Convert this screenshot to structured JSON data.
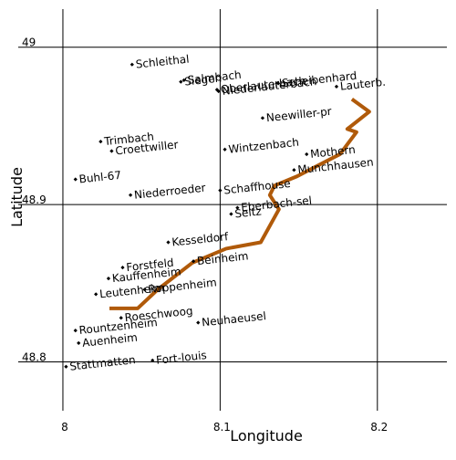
{
  "chart_data": {
    "type": "scatter",
    "xlabel": "Longitude",
    "ylabel": "Latitude",
    "xlim": [
      7.96,
      8.25
    ],
    "ylim": [
      48.74,
      49.03
    ],
    "xticks": [
      8,
      8.1,
      8.2
    ],
    "yticks": [
      48.8,
      48.9,
      49
    ],
    "grid": true,
    "color": "#000000",
    "points": {
      "labels": [
        "Schleithal",
        "Siegen",
        "Salmbach",
        "Oberlauterbach",
        "Niederlauterbach",
        "Scheibenhard",
        "Lauterb.",
        "Neewiller-pr",
        "Trimbach",
        "Croettwiller",
        "Wintzenbach",
        "Mothern",
        "Munchhausen",
        "Buhl-67",
        "Niederroeder",
        "Schaffhouse",
        "Eberbach-sel",
        "Seltz",
        "Kesseldorf",
        "Forstfeld",
        "Beinheim",
        "Kauffenheim",
        "Roppenheim",
        "Leutenheim",
        "Roeschwoog",
        "Neuhaeusel",
        "Rountzenheim",
        "Auenheim",
        "Fort-louis",
        "Stattmatten"
      ],
      "x": [
        8.044,
        8.075,
        8.077,
        8.098,
        8.099,
        8.137,
        8.174,
        8.127,
        8.024,
        8.031,
        8.103,
        8.155,
        8.147,
        8.008,
        8.043,
        8.1,
        8.111,
        8.107,
        8.067,
        8.038,
        8.083,
        8.029,
        8.052,
        8.021,
        8.037,
        8.086,
        8.008,
        8.01,
        8.057,
        8.002
      ],
      "y": [
        48.989,
        48.978,
        48.979,
        48.973,
        48.972,
        48.977,
        48.975,
        48.955,
        48.94,
        48.934,
        48.935,
        48.932,
        48.922,
        48.916,
        48.906,
        48.909,
        48.898,
        48.894,
        48.876,
        48.86,
        48.864,
        48.853,
        48.846,
        48.843,
        48.828,
        48.825,
        48.82,
        48.812,
        48.801,
        48.797
      ]
    },
    "line": {
      "color": "#b05a0a",
      "x": [
        8.1838,
        8.1948,
        8.1809,
        8.1867,
        8.1762,
        8.1606,
        8.149,
        8.1345,
        8.1316,
        8.1374,
        8.1258,
        8.1038,
        8.0823,
        8.0603,
        8.0475,
        8.0296
      ],
      "y": [
        48.967,
        48.959,
        48.948,
        48.946,
        48.932,
        48.924,
        48.918,
        48.912,
        48.906,
        48.897,
        48.876,
        48.872,
        48.863,
        48.846,
        48.834,
        48.834
      ]
    }
  }
}
